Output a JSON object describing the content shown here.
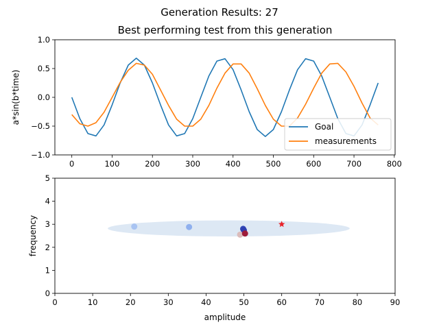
{
  "figure": {
    "suptitle": "Generation Results: 27"
  },
  "chart_data": [
    {
      "type": "line",
      "title": "Best performing test from this generation",
      "xlabel": "",
      "ylabel": "a*sin(b*time)",
      "xlim": [
        -42,
        802
      ],
      "ylim": [
        -1.0,
        1.0
      ],
      "xticks": [
        0,
        100,
        200,
        300,
        400,
        500,
        600,
        700,
        800
      ],
      "xtick_labels": [
        "0",
        "100",
        "200",
        "300",
        "400",
        "500",
        "600",
        "700",
        "800"
      ],
      "yticks": [
        -1.0,
        -0.5,
        0.0,
        0.5,
        1.0
      ],
      "ytick_labels": [
        "−1.0",
        "−0.5",
        "0.0",
        "0.5",
        "1.0"
      ],
      "grid": false,
      "legend_position": "lower-right",
      "series": [
        {
          "name": "Goal",
          "color": "#1f77b4",
          "x": [
            0,
            20,
            40,
            60,
            80,
            100,
            120,
            140,
            160,
            180,
            200,
            220,
            240,
            260,
            280,
            300,
            320,
            340,
            360,
            380,
            400,
            420,
            440,
            460,
            480,
            500,
            520,
            540,
            560,
            580,
            600,
            620,
            640,
            660,
            680,
            700,
            720,
            740,
            760
          ],
          "y": [
            0.0,
            -0.37,
            -0.63,
            -0.67,
            -0.48,
            -0.13,
            0.25,
            0.56,
            0.68,
            0.56,
            0.25,
            -0.13,
            -0.48,
            -0.67,
            -0.63,
            -0.37,
            0.0,
            0.37,
            0.63,
            0.67,
            0.48,
            0.13,
            -0.25,
            -0.56,
            -0.68,
            -0.56,
            -0.25,
            0.13,
            0.48,
            0.67,
            0.63,
            0.37,
            0.0,
            -0.37,
            -0.63,
            -0.67,
            -0.48,
            -0.13,
            0.25
          ]
        },
        {
          "name": "measurements",
          "color": "#ff7f0e",
          "x": [
            0,
            20,
            40,
            60,
            80,
            100,
            120,
            140,
            160,
            180,
            200,
            220,
            240,
            260,
            280,
            300,
            320,
            340,
            360,
            380,
            400,
            420,
            440,
            460,
            480,
            500,
            520,
            540,
            560,
            580,
            600,
            620,
            640,
            660,
            680,
            700,
            720,
            740,
            760
          ],
          "y": [
            -0.3,
            -0.46,
            -0.5,
            -0.44,
            -0.26,
            0.0,
            0.26,
            0.47,
            0.59,
            0.56,
            0.4,
            0.13,
            -0.14,
            -0.38,
            -0.5,
            -0.5,
            -0.38,
            -0.14,
            0.16,
            0.42,
            0.58,
            0.58,
            0.42,
            0.15,
            -0.14,
            -0.38,
            -0.5,
            -0.5,
            -0.36,
            -0.12,
            0.16,
            0.42,
            0.58,
            0.59,
            0.44,
            0.19,
            -0.1,
            -0.36,
            -0.48
          ]
        }
      ]
    },
    {
      "type": "scatter",
      "title": "",
      "xlabel": "amplitude",
      "ylabel": "frequency",
      "xlim": [
        0,
        90
      ],
      "ylim": [
        0,
        5
      ],
      "xticks": [
        0,
        10,
        20,
        30,
        40,
        50,
        60,
        70,
        80,
        90
      ],
      "xtick_labels": [
        "0",
        "10",
        "20",
        "30",
        "40",
        "50",
        "60",
        "70",
        "80",
        "90"
      ],
      "yticks": [
        0,
        1,
        2,
        3,
        4,
        5
      ],
      "ytick_labels": [
        "0",
        "1",
        "2",
        "3",
        "4",
        "5"
      ],
      "grid": false,
      "ellipse": {
        "cx": 46,
        "cy": 2.82,
        "rx": 32,
        "ry": 0.35,
        "color": "#dde8f4"
      },
      "points": [
        {
          "x": 21.0,
          "y": 2.9,
          "color": "#a9c4f2",
          "marker": "circle"
        },
        {
          "x": 35.5,
          "y": 2.88,
          "color": "#8fb0ee",
          "marker": "circle"
        },
        {
          "x": 49.8,
          "y": 2.8,
          "color": "#3148b8",
          "marker": "circle"
        },
        {
          "x": 50.0,
          "y": 2.74,
          "color": "#2e3fb0",
          "marker": "circle"
        },
        {
          "x": 49.0,
          "y": 2.55,
          "color": "#dbbcbc",
          "marker": "circle"
        },
        {
          "x": 50.3,
          "y": 2.6,
          "color": "#9e1c3a",
          "marker": "circle"
        },
        {
          "x": 60.0,
          "y": 3.0,
          "color": "#e8232a",
          "marker": "star"
        }
      ]
    }
  ]
}
